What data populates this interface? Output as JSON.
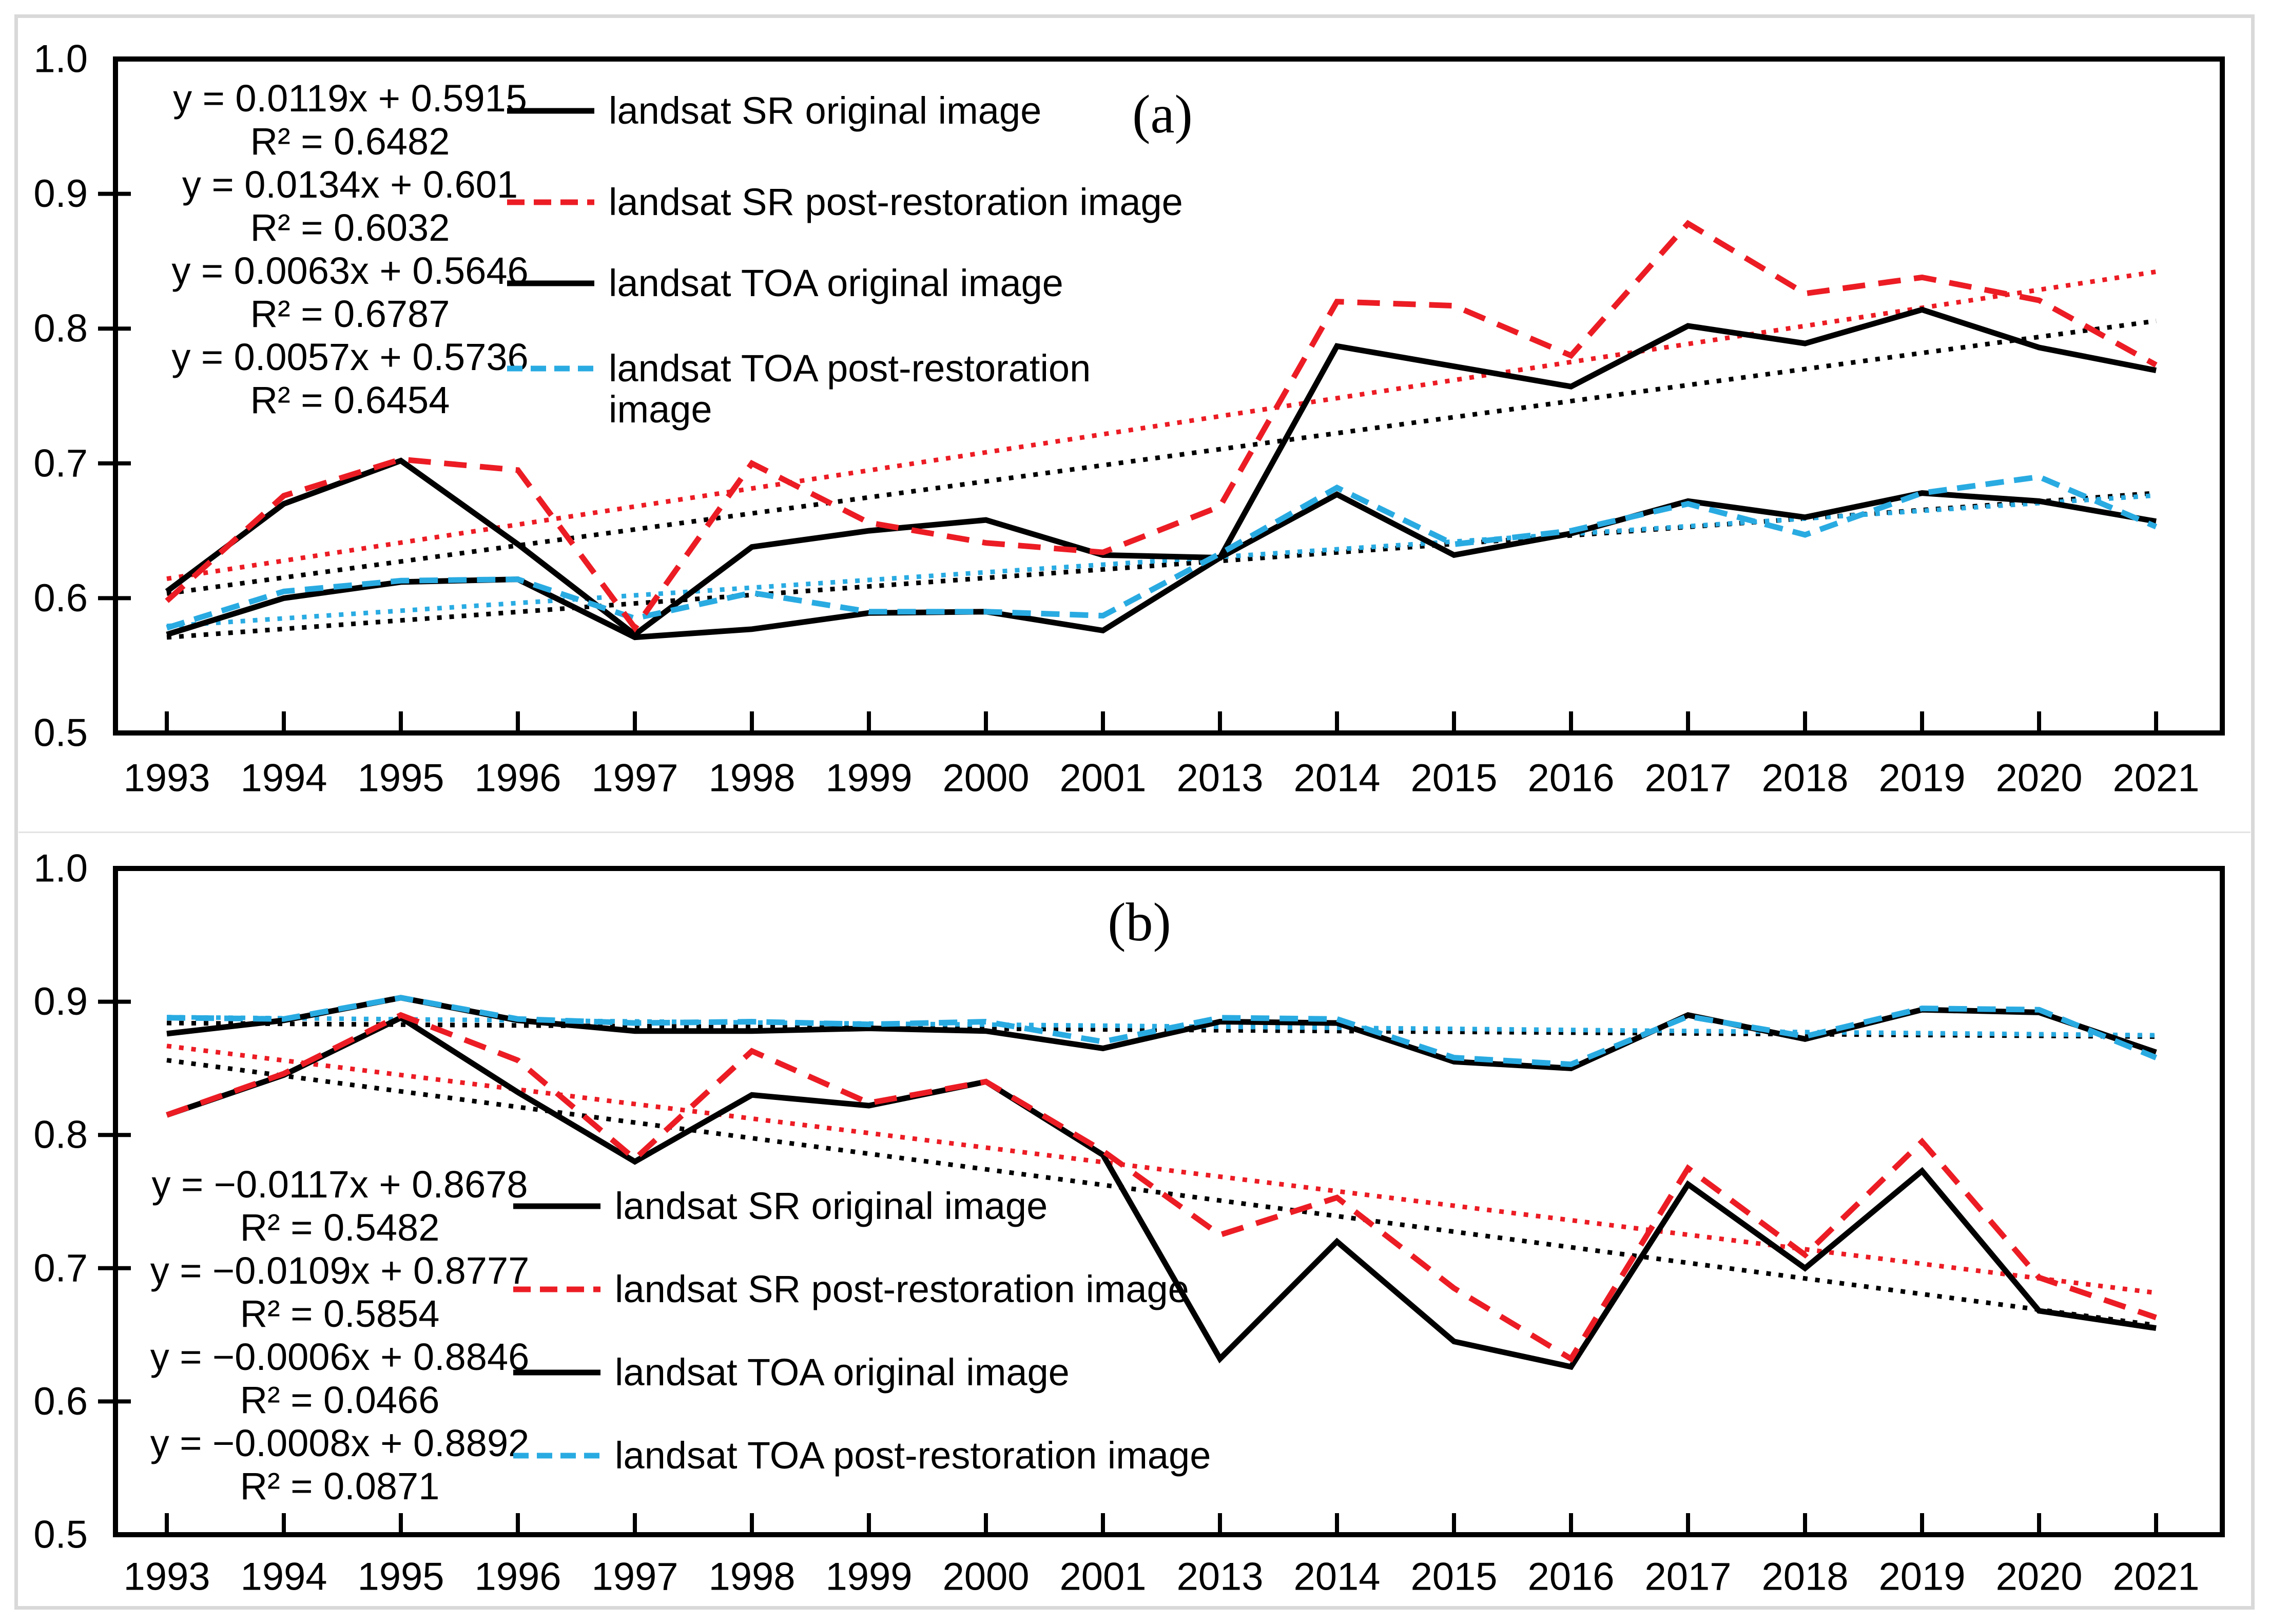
{
  "figure": {
    "background": "#ffffff",
    "frame_color": "#d9d9d9"
  },
  "colors": {
    "black": "#000000",
    "red": "#ec1c24",
    "blue": "#29abe2"
  },
  "chart_data": [
    {
      "type": "line",
      "panel_label": "(a)",
      "title": "",
      "xlabel": "",
      "ylabel": "",
      "ylim": [
        0.5,
        1.0
      ],
      "grid": false,
      "legend_position": "upper-left-inside",
      "y_tick_labels": [
        "1.0",
        "0.9",
        "0.8",
        "0.7",
        "0.6",
        "0.5"
      ],
      "y_tick_values": [
        1.0,
        0.9,
        0.8,
        0.7,
        0.6,
        0.5
      ],
      "categories": [
        "1993",
        "1994",
        "1995",
        "1996",
        "1997",
        "1998",
        "1999",
        "2000",
        "2001",
        "2013",
        "2014",
        "2015",
        "2016",
        "2017",
        "2018",
        "2019",
        "2020",
        "2021"
      ],
      "series": [
        {
          "name": "landsat SR original image",
          "legend_label": "landsat SR original image",
          "color": "#000000",
          "style": "solid",
          "values": [
            0.605,
            0.67,
            0.702,
            0.64,
            0.573,
            0.638,
            0.65,
            0.658,
            0.632,
            0.63,
            0.787,
            0.772,
            0.757,
            0.802,
            0.789,
            0.814,
            0.786,
            0.769
          ]
        },
        {
          "name": "landsat SR post-restoration image",
          "legend_label": "landsat SR post-restoration image",
          "color": "#ec1c24",
          "style": "dashed",
          "values": [
            0.598,
            0.676,
            0.703,
            0.695,
            0.578,
            0.7,
            0.656,
            0.641,
            0.634,
            0.668,
            0.82,
            0.817,
            0.78,
            0.878,
            0.826,
            0.838,
            0.821,
            0.773
          ]
        },
        {
          "name": "landsat TOA original image",
          "legend_label": "landsat TOA original image",
          "color": "#000000",
          "style": "solid",
          "values": [
            0.573,
            0.6,
            0.612,
            0.614,
            0.571,
            0.577,
            0.589,
            0.59,
            0.576,
            0.63,
            0.677,
            0.632,
            0.648,
            0.672,
            0.66,
            0.678,
            0.672,
            0.657
          ]
        },
        {
          "name": "landsat TOA post-restoration image",
          "legend_label": "landsat TOA post-restoration\nimage",
          "color": "#29abe2",
          "style": "dashed",
          "values": [
            0.578,
            0.605,
            0.613,
            0.614,
            0.585,
            0.604,
            0.59,
            0.59,
            0.587,
            0.633,
            0.682,
            0.64,
            0.65,
            0.67,
            0.647,
            0.678,
            0.69,
            0.653
          ]
        }
      ],
      "trendlines": [
        {
          "equation": "y = 0.0119x + 0.5915",
          "r2": "R² = 0.6482",
          "slope": 0.0119,
          "intercept": 0.5915,
          "color": "#000000"
        },
        {
          "equation": "y = 0.0134x + 0.601",
          "r2": "R² = 0.6032",
          "slope": 0.0134,
          "intercept": 0.601,
          "color": "#ec1c24"
        },
        {
          "equation": "y = 0.0063x + 0.5646",
          "r2": "R² = 0.6787",
          "slope": 0.0063,
          "intercept": 0.5646,
          "color": "#000000"
        },
        {
          "equation": "y = 0.0057x + 0.5736",
          "r2": "R² = 0.6454",
          "slope": 0.0057,
          "intercept": 0.5736,
          "color": "#29abe2"
        }
      ]
    },
    {
      "type": "line",
      "panel_label": "(b)",
      "title": "",
      "xlabel": "",
      "ylabel": "",
      "ylim": [
        0.5,
        1.0
      ],
      "grid": false,
      "legend_position": "lower-left-inside",
      "y_tick_labels": [
        "1.0",
        "0.9",
        "0.8",
        "0.7",
        "0.6",
        "0.5"
      ],
      "y_tick_values": [
        1.0,
        0.9,
        0.8,
        0.7,
        0.6,
        0.5
      ],
      "categories": [
        "1993",
        "1994",
        "1995",
        "1996",
        "1997",
        "1998",
        "1999",
        "2000",
        "2001",
        "2013",
        "2014",
        "2015",
        "2016",
        "2017",
        "2018",
        "2019",
        "2020",
        "2021"
      ],
      "series": [
        {
          "name": "landsat SR original image",
          "legend_label": "landsat SR original image",
          "color": "#000000",
          "style": "solid",
          "values": [
            0.815,
            0.845,
            0.888,
            0.832,
            0.78,
            0.83,
            0.822,
            0.84,
            0.785,
            0.632,
            0.72,
            0.645,
            0.626,
            0.763,
            0.7,
            0.773,
            0.668,
            0.655
          ]
        },
        {
          "name": "landsat SR post-restoration image",
          "legend_label": "landsat SR post-restoration image",
          "color": "#ec1c24",
          "style": "dashed",
          "values": [
            0.815,
            0.846,
            0.89,
            0.856,
            0.782,
            0.863,
            0.824,
            0.84,
            0.788,
            0.725,
            0.753,
            0.685,
            0.632,
            0.775,
            0.71,
            0.795,
            0.693,
            0.663
          ]
        },
        {
          "name": "landsat TOA original image",
          "legend_label": "landsat TOA original image",
          "color": "#000000",
          "style": "solid",
          "values": [
            0.876,
            0.886,
            0.903,
            0.886,
            0.878,
            0.878,
            0.88,
            0.878,
            0.865,
            0.885,
            0.884,
            0.855,
            0.85,
            0.89,
            0.872,
            0.894,
            0.892,
            0.862
          ]
        },
        {
          "name": "landsat TOA post-restoration image",
          "legend_label": "landsat TOA post-restoration image",
          "color": "#29abe2",
          "style": "dashed",
          "values": [
            0.888,
            0.887,
            0.903,
            0.887,
            0.884,
            0.885,
            0.883,
            0.885,
            0.87,
            0.888,
            0.887,
            0.858,
            0.853,
            0.889,
            0.874,
            0.895,
            0.894,
            0.858
          ]
        }
      ],
      "trendlines": [
        {
          "equation": "y = −0.0117x + 0.8678",
          "r2": "R² = 0.5482",
          "slope": -0.0117,
          "intercept": 0.8678,
          "color": "#000000"
        },
        {
          "equation": "y = −0.0109x + 0.8777",
          "r2": "R² = 0.5854",
          "slope": -0.0109,
          "intercept": 0.8777,
          "color": "#ec1c24"
        },
        {
          "equation": "y = −0.0006x + 0.8846",
          "r2": "R² = 0.0466",
          "slope": -0.0006,
          "intercept": 0.8846,
          "color": "#000000"
        },
        {
          "equation": "y = −0.0008x + 0.8892",
          "r2": "R² = 0.0871",
          "slope": -0.0008,
          "intercept": 0.8892,
          "color": "#29abe2"
        }
      ]
    }
  ]
}
